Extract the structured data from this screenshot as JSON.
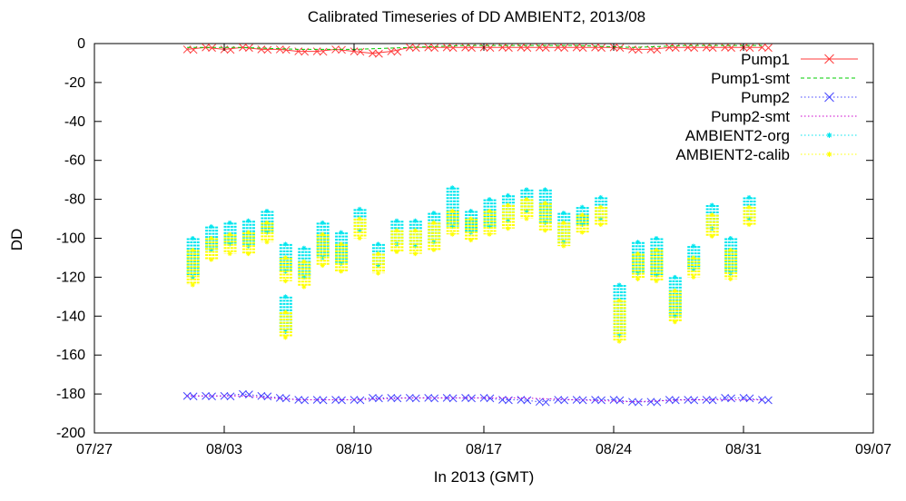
{
  "chart_data": {
    "type": "scatter",
    "title": "Calibrated Timeseries of DD AMBIENT2, 2013/08",
    "xlabel": "In 2013 (GMT)",
    "ylabel": "DD",
    "x_ticks": [
      "07/27",
      "08/03",
      "08/10",
      "08/17",
      "08/24",
      "08/31",
      "09/07"
    ],
    "x_range_days_from_jul27": [
      0,
      42
    ],
    "ylim": [
      -200,
      0
    ],
    "y_ticks": [
      0,
      -20,
      -40,
      -60,
      -80,
      -100,
      -120,
      -140,
      -160,
      -180,
      -200
    ],
    "grid": false,
    "legend_position": "top-right",
    "series": [
      {
        "name": "Pump1",
        "color": "#ff3b3b",
        "marker": "x",
        "line": "solid",
        "x": [
          "08/01",
          "08/02",
          "08/03",
          "08/04",
          "08/05",
          "08/06",
          "08/07",
          "08/08",
          "08/09",
          "08/10",
          "08/11",
          "08/12",
          "08/13",
          "08/14",
          "08/15",
          "08/16",
          "08/17",
          "08/18",
          "08/19",
          "08/20",
          "08/21",
          "08/22",
          "08/23",
          "08/24",
          "08/25",
          "08/26",
          "08/27",
          "08/28",
          "08/29",
          "08/30",
          "08/31",
          "09/01"
        ],
        "y": [
          -3,
          -2,
          -3,
          -2,
          -3,
          -3,
          -4,
          -4,
          -3,
          -4,
          -5,
          -4,
          -2,
          -2,
          -2,
          -2,
          -2,
          -2,
          -2,
          -2,
          -2,
          -2,
          -2,
          -2,
          -3,
          -3,
          -2,
          -2,
          -2,
          -2,
          -2,
          -2
        ]
      },
      {
        "name": "Pump1-smt",
        "color": "#00cc00",
        "marker": "none",
        "line": "dashed",
        "x": [
          "08/01",
          "08/04",
          "08/07",
          "08/10",
          "08/13",
          "08/16",
          "08/19",
          "08/22",
          "08/25",
          "08/28",
          "09/01"
        ],
        "y": [
          -2,
          -2,
          -3,
          -3,
          -2,
          -1,
          -1,
          -1,
          -2,
          -1,
          -1
        ]
      },
      {
        "name": "Pump2",
        "color": "#4444ff",
        "marker": "x",
        "line": "dotted",
        "x": [
          "08/01",
          "08/02",
          "08/03",
          "08/04",
          "08/05",
          "08/06",
          "08/07",
          "08/08",
          "08/09",
          "08/10",
          "08/11",
          "08/12",
          "08/13",
          "08/14",
          "08/15",
          "08/16",
          "08/17",
          "08/18",
          "08/19",
          "08/20",
          "08/21",
          "08/22",
          "08/23",
          "08/24",
          "08/25",
          "08/26",
          "08/27",
          "08/28",
          "08/29",
          "08/30",
          "08/31",
          "09/01"
        ],
        "y": [
          -181,
          -181,
          -181,
          -180,
          -181,
          -182,
          -183,
          -183,
          -183,
          -183,
          -182,
          -182,
          -182,
          -182,
          -182,
          -182,
          -182,
          -183,
          -183,
          -184,
          -183,
          -183,
          -183,
          -183,
          -184,
          -184,
          -183,
          -183,
          -183,
          -182,
          -182,
          -183
        ]
      },
      {
        "name": "Pump2-smt",
        "color": "#cc00cc",
        "marker": "none",
        "line": "dotted",
        "x": [
          "08/01",
          "08/04",
          "08/07",
          "08/10",
          "08/13",
          "08/16",
          "08/19",
          "08/22",
          "08/25",
          "08/28",
          "09/01"
        ],
        "y": [
          -181,
          -181,
          -183,
          -183,
          -182,
          -182,
          -182,
          -183,
          -184,
          -183,
          -183
        ]
      },
      {
        "name": "AMBIENT2-org",
        "color": "#00e5ee",
        "marker": "star",
        "line": "dotted",
        "clusters": [
          {
            "x": "08/01",
            "y_top": -100,
            "y_bot": -120
          },
          {
            "x": "08/02",
            "y_top": -94,
            "y_bot": -106
          },
          {
            "x": "08/03",
            "y_top": -92,
            "y_bot": -103
          },
          {
            "x": "08/04",
            "y_top": -91,
            "y_bot": -104
          },
          {
            "x": "08/05",
            "y_top": -86,
            "y_bot": -97
          },
          {
            "x": "08/06",
            "y_top": -103,
            "y_bot": -117
          },
          {
            "x": "08/06",
            "y_top": -130,
            "y_bot": -148
          },
          {
            "x": "08/07",
            "y_top": -105,
            "y_bot": -120
          },
          {
            "x": "08/08",
            "y_top": -92,
            "y_bot": -110
          },
          {
            "x": "08/09",
            "y_top": -97,
            "y_bot": -113
          },
          {
            "x": "08/10",
            "y_top": -85,
            "y_bot": -96
          },
          {
            "x": "08/11",
            "y_top": -103,
            "y_bot": -114
          },
          {
            "x": "08/12",
            "y_top": -91,
            "y_bot": -103
          },
          {
            "x": "08/13",
            "y_top": -91,
            "y_bot": -104
          },
          {
            "x": "08/14",
            "y_top": -87,
            "y_bot": -102
          },
          {
            "x": "08/15",
            "y_top": -74,
            "y_bot": -94
          },
          {
            "x": "08/16",
            "y_top": -86,
            "y_bot": -97
          },
          {
            "x": "08/17",
            "y_top": -80,
            "y_bot": -94
          },
          {
            "x": "08/18",
            "y_top": -78,
            "y_bot": -91
          },
          {
            "x": "08/19",
            "y_top": -75,
            "y_bot": -86
          },
          {
            "x": "08/20",
            "y_top": -75,
            "y_bot": -92
          },
          {
            "x": "08/21",
            "y_top": -87,
            "y_bot": -102
          },
          {
            "x": "08/22",
            "y_top": -84,
            "y_bot": -93
          },
          {
            "x": "08/23",
            "y_top": -79,
            "y_bot": -90
          },
          {
            "x": "08/24",
            "y_top": -124,
            "y_bot": -150
          },
          {
            "x": "08/25",
            "y_top": -102,
            "y_bot": -118
          },
          {
            "x": "08/26",
            "y_top": -100,
            "y_bot": -119
          },
          {
            "x": "08/27",
            "y_top": -120,
            "y_bot": -140
          },
          {
            "x": "08/28",
            "y_top": -104,
            "y_bot": -116
          },
          {
            "x": "08/29",
            "y_top": -83,
            "y_bot": -95
          },
          {
            "x": "08/30",
            "y_top": -100,
            "y_bot": -118
          },
          {
            "x": "08/31",
            "y_top": -79,
            "y_bot": -90
          }
        ]
      },
      {
        "name": "AMBIENT2-calib",
        "color": "#ffff00",
        "marker": "star",
        "line": "dotted",
        "clusters": [
          {
            "x": "08/01",
            "y_top": -106,
            "y_bot": -124
          },
          {
            "x": "08/02",
            "y_top": -100,
            "y_bot": -111
          },
          {
            "x": "08/03",
            "y_top": -98,
            "y_bot": -108
          },
          {
            "x": "08/04",
            "y_top": -97,
            "y_bot": -108
          },
          {
            "x": "08/05",
            "y_top": -92,
            "y_bot": -102
          },
          {
            "x": "08/06",
            "y_top": -110,
            "y_bot": -122
          },
          {
            "x": "08/06",
            "y_top": -138,
            "y_bot": -151
          },
          {
            "x": "08/07",
            "y_top": -112,
            "y_bot": -125
          },
          {
            "x": "08/08",
            "y_top": -98,
            "y_bot": -114
          },
          {
            "x": "08/09",
            "y_top": -103,
            "y_bot": -117
          },
          {
            "x": "08/10",
            "y_top": -90,
            "y_bot": -100
          },
          {
            "x": "08/11",
            "y_top": -108,
            "y_bot": -118
          },
          {
            "x": "08/12",
            "y_top": -96,
            "y_bot": -107
          },
          {
            "x": "08/13",
            "y_top": -96,
            "y_bot": -108
          },
          {
            "x": "08/14",
            "y_top": -92,
            "y_bot": -106
          },
          {
            "x": "08/15",
            "y_top": -86,
            "y_bot": -98
          },
          {
            "x": "08/16",
            "y_top": -90,
            "y_bot": -101
          },
          {
            "x": "08/17",
            "y_top": -86,
            "y_bot": -98
          },
          {
            "x": "08/18",
            "y_top": -83,
            "y_bot": -95
          },
          {
            "x": "08/19",
            "y_top": -80,
            "y_bot": -90
          },
          {
            "x": "08/20",
            "y_top": -82,
            "y_bot": -96
          },
          {
            "x": "08/21",
            "y_top": -92,
            "y_bot": -104
          },
          {
            "x": "08/22",
            "y_top": -88,
            "y_bot": -97
          },
          {
            "x": "08/23",
            "y_top": -84,
            "y_bot": -93
          },
          {
            "x": "08/24",
            "y_top": -132,
            "y_bot": -153
          },
          {
            "x": "08/25",
            "y_top": -108,
            "y_bot": -121
          },
          {
            "x": "08/26",
            "y_top": -106,
            "y_bot": -122
          },
          {
            "x": "08/27",
            "y_top": -127,
            "y_bot": -143
          },
          {
            "x": "08/28",
            "y_top": -110,
            "y_bot": -120
          },
          {
            "x": "08/29",
            "y_top": -88,
            "y_bot": -99
          },
          {
            "x": "08/30",
            "y_top": -106,
            "y_bot": -121
          },
          {
            "x": "08/31",
            "y_top": -84,
            "y_bot": -93
          }
        ]
      }
    ]
  }
}
